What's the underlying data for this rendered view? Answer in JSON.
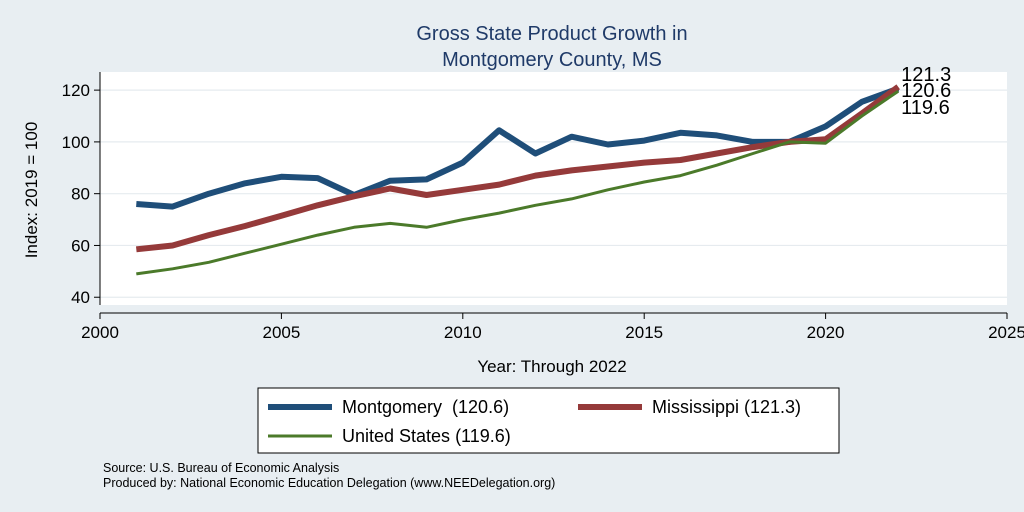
{
  "chart_data": {
    "type": "line",
    "title_lines": [
      "Gross State Product Growth in",
      "Montgomery County, MS"
    ],
    "xlabel": "Year: Through 2022",
    "ylabel": "Index: 2019 = 100",
    "xlim": [
      2000,
      2025
    ],
    "ylim": [
      37,
      127
    ],
    "xticks": [
      2000,
      2005,
      2010,
      2015,
      2020,
      2025
    ],
    "yticks": [
      40,
      60,
      80,
      100,
      120
    ],
    "x": [
      2001,
      2002,
      2003,
      2004,
      2005,
      2006,
      2007,
      2008,
      2009,
      2010,
      2011,
      2012,
      2013,
      2014,
      2015,
      2016,
      2017,
      2018,
      2019,
      2020,
      2021,
      2022
    ],
    "series": [
      {
        "name": "Montgomery",
        "legend_label": "Montgomery  (120.6)",
        "color": "#1f4e79",
        "values": [
          76,
          75,
          80,
          84,
          86.5,
          86,
          79.5,
          85,
          85.5,
          92,
          104.5,
          95.5,
          102,
          99,
          100.5,
          103.5,
          102.5,
          100,
          100,
          106,
          115.5,
          120.6
        ]
      },
      {
        "name": "Mississippi",
        "legend_label": "Mississippi (121.3)",
        "color": "#953a3a",
        "values": [
          58.5,
          60,
          64,
          67.5,
          71.5,
          75.5,
          79,
          82,
          79.5,
          81.5,
          83.5,
          87,
          89,
          90.5,
          92,
          93,
          95.5,
          98,
          100,
          101,
          111,
          121.3
        ]
      },
      {
        "name": "United States",
        "legend_label": "United States (119.6)",
        "color": "#4b7a2a",
        "values": [
          49,
          51,
          53.5,
          57,
          60.5,
          64,
          67,
          68.5,
          67,
          70,
          72.5,
          75.5,
          78,
          81.5,
          84.5,
          87,
          91,
          95.5,
          100,
          99.5,
          110,
          119.6
        ]
      }
    ],
    "end_labels": [
      "121.3",
      "120.6",
      "119.6"
    ],
    "grid": true,
    "legend_position": "bottom"
  },
  "notes": {
    "source": "Source: U.S. Bureau of Economic Analysis",
    "produced_by": "Produced by: National Economic Education Delegation (www.NEEDelegation.org)"
  }
}
